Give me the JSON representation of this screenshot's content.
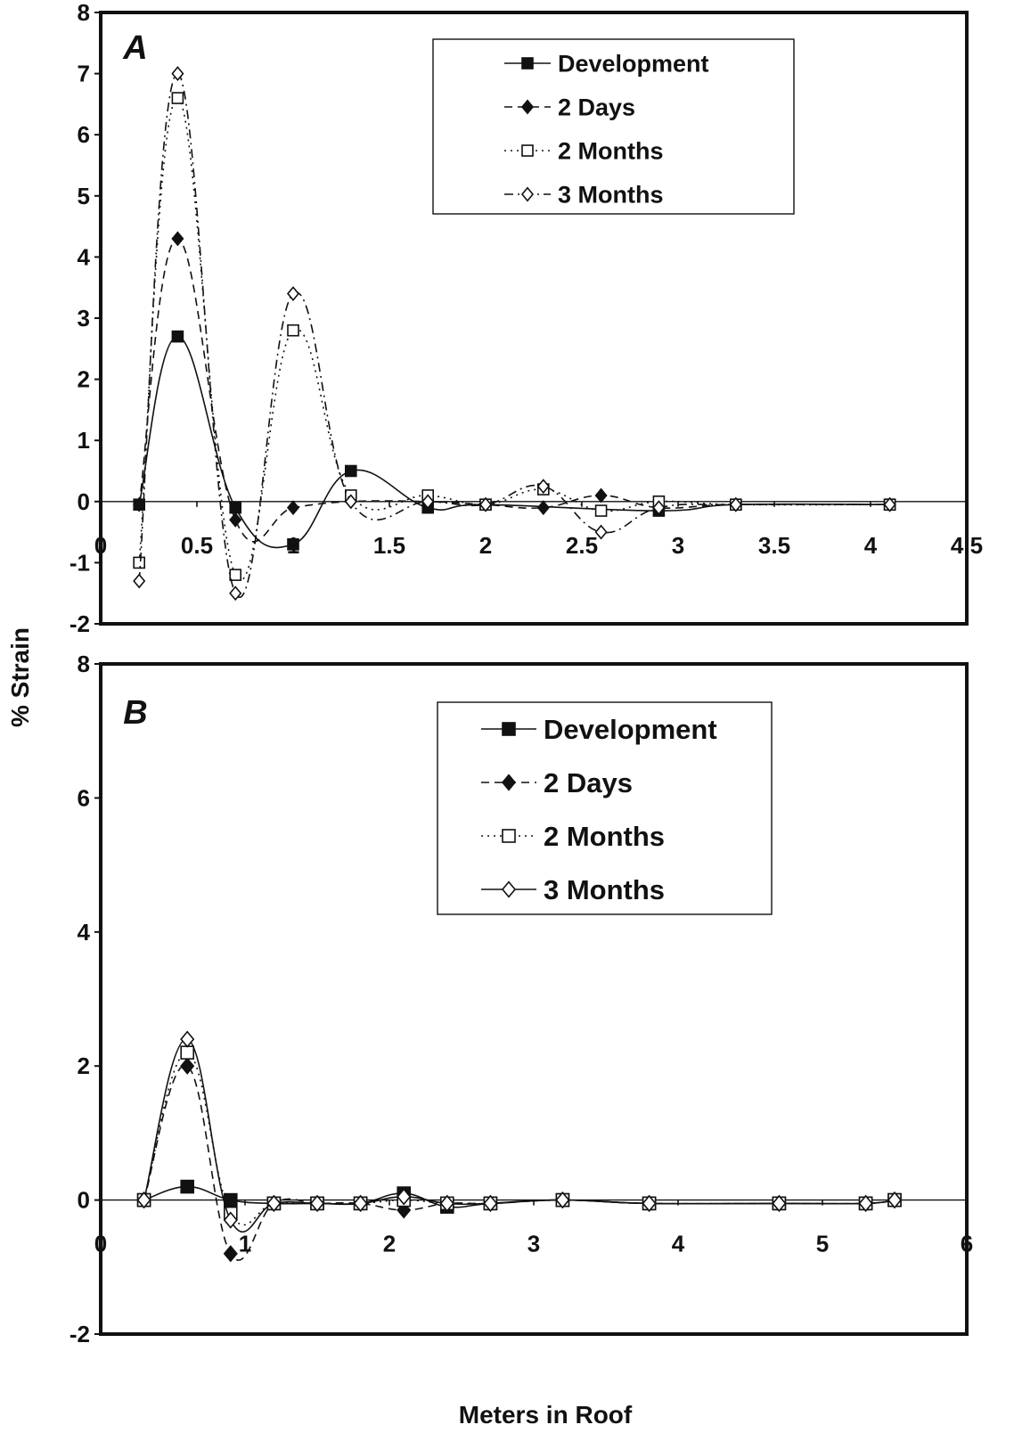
{
  "ylabel": "% Strain",
  "xlabel": "Meters in Roof",
  "chart_data": [
    {
      "type": "line",
      "panel": "A",
      "xlim": [
        0,
        4.5
      ],
      "ylim": [
        -2,
        8
      ],
      "xticks": [
        "0",
        "0.5",
        "1",
        "1.5",
        "2",
        "2.5",
        "3",
        "3.5",
        "4",
        "4.5"
      ],
      "xtick_values": [
        0,
        0.5,
        1,
        1.5,
        2,
        2.5,
        3,
        3.5,
        4,
        4.5
      ],
      "yticks": [
        "-2",
        "-1",
        "0",
        "1",
        "2",
        "3",
        "4",
        "5",
        "6",
        "7",
        "8"
      ],
      "ytick_values": [
        -2,
        -1,
        0,
        1,
        2,
        3,
        4,
        5,
        6,
        7,
        8
      ],
      "legend_position": "top-right",
      "series": [
        {
          "name": "Development",
          "style": "solid",
          "marker": "square-filled",
          "x": [
            0.2,
            0.4,
            0.7,
            1.0,
            1.3,
            1.7,
            2.0,
            2.9,
            3.3,
            4.1
          ],
          "y": [
            -0.05,
            2.7,
            -0.1,
            -0.7,
            0.5,
            -0.1,
            -0.05,
            -0.15,
            -0.05,
            -0.05
          ]
        },
        {
          "name": "2 Days",
          "style": "dashed",
          "marker": "diamond-filled",
          "x": [
            0.2,
            0.4,
            0.7,
            1.0,
            1.3,
            1.7,
            2.0,
            2.3,
            2.6,
            2.9,
            3.3,
            4.1
          ],
          "y": [
            -0.05,
            4.3,
            -0.3,
            -0.1,
            0.0,
            0.0,
            -0.05,
            -0.1,
            0.1,
            -0.1,
            -0.05,
            -0.05
          ]
        },
        {
          "name": "2 Months",
          "style": "dotted",
          "marker": "square-open",
          "x": [
            0.2,
            0.4,
            0.7,
            1.0,
            1.3,
            1.7,
            2.0,
            2.3,
            2.6,
            2.9,
            3.3,
            4.1
          ],
          "y": [
            -1.0,
            6.6,
            -1.2,
            2.8,
            0.1,
            0.1,
            -0.05,
            0.2,
            -0.15,
            0.0,
            -0.05,
            -0.05
          ]
        },
        {
          "name": "3 Months",
          "style": "dash-dot",
          "marker": "diamond-open",
          "x": [
            0.2,
            0.4,
            0.7,
            1.0,
            1.3,
            1.7,
            2.0,
            2.3,
            2.6,
            2.9,
            3.3,
            4.1
          ],
          "y": [
            -1.3,
            7.0,
            -1.5,
            3.4,
            0.0,
            0.0,
            -0.05,
            0.25,
            -0.5,
            -0.1,
            -0.05,
            -0.05
          ]
        }
      ]
    },
    {
      "type": "line",
      "panel": "B",
      "xlim": [
        0,
        6
      ],
      "ylim": [
        -2,
        8
      ],
      "xticks": [
        "0",
        "1",
        "2",
        "3",
        "4",
        "5",
        "6"
      ],
      "xtick_values": [
        0,
        1,
        2,
        3,
        4,
        5,
        6
      ],
      "yticks": [
        "-2",
        "0",
        "2",
        "4",
        "6",
        "8"
      ],
      "ytick_values": [
        -2,
        0,
        2,
        4,
        6,
        8
      ],
      "legend_position": "top-right",
      "series": [
        {
          "name": "Development",
          "style": "solid",
          "marker": "square-filled",
          "x": [
            0.3,
            0.6,
            0.9,
            1.2,
            1.5,
            1.8,
            2.1,
            2.4,
            2.7,
            3.2,
            3.8,
            4.7,
            5.3,
            5.5
          ],
          "y": [
            0.0,
            0.2,
            0.0,
            -0.05,
            -0.05,
            -0.05,
            0.1,
            -0.1,
            -0.05,
            0.0,
            -0.05,
            -0.05,
            -0.05,
            0.0
          ]
        },
        {
          "name": "2 Days",
          "style": "dashed",
          "marker": "diamond-filled",
          "x": [
            0.3,
            0.6,
            0.9,
            1.2,
            1.5,
            1.8,
            2.1,
            2.4,
            2.7,
            3.2,
            3.8,
            4.7,
            5.3,
            5.5
          ],
          "y": [
            0.0,
            2.0,
            -0.8,
            -0.05,
            -0.05,
            -0.05,
            -0.15,
            -0.05,
            -0.05,
            0.0,
            -0.05,
            -0.05,
            -0.05,
            0.0
          ]
        },
        {
          "name": "2 Months",
          "style": "dotted",
          "marker": "square-open",
          "x": [
            0.3,
            0.6,
            0.9,
            1.2,
            1.5,
            1.8,
            2.1,
            2.4,
            2.7,
            3.2,
            3.8,
            4.7,
            5.3,
            5.5
          ],
          "y": [
            0.0,
            2.2,
            -0.2,
            -0.05,
            -0.05,
            -0.05,
            0.0,
            -0.05,
            -0.05,
            0.0,
            -0.05,
            -0.05,
            -0.05,
            0.0
          ]
        },
        {
          "name": "3 Months",
          "style": "solid",
          "marker": "diamond-open",
          "x": [
            0.3,
            0.6,
            0.9,
            1.2,
            1.5,
            1.8,
            2.1,
            2.4,
            2.7,
            3.2,
            3.8,
            4.7,
            5.3,
            5.5
          ],
          "y": [
            0.0,
            2.4,
            -0.3,
            -0.05,
            -0.05,
            -0.05,
            0.05,
            -0.05,
            -0.05,
            0.0,
            -0.05,
            -0.05,
            -0.05,
            0.0
          ]
        }
      ]
    }
  ]
}
